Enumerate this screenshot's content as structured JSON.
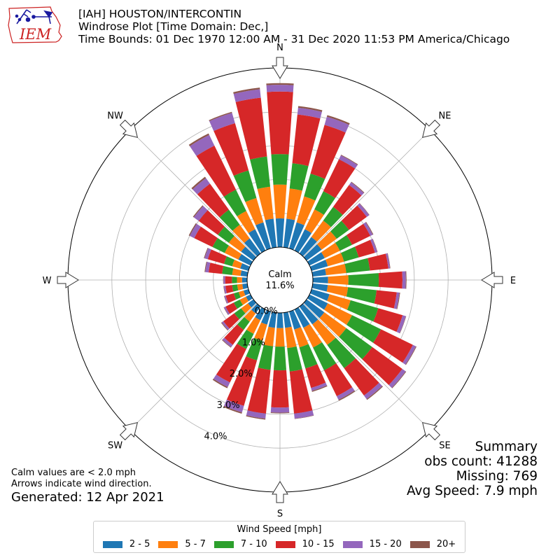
{
  "header": {
    "line1": "[IAH] HOUSTON/INTERCONTIN",
    "line2": "Windrose Plot [Time Domain: Dec,]",
    "line3": "Time Bounds: 01 Dec 1970 12:00 AM - 31 Dec 2020 11:53 PM America/Chicago"
  },
  "logo": {
    "text": "IEM",
    "color": "#cc2222"
  },
  "summary": {
    "title": "Summary",
    "obs_count": "obs count: 41288",
    "missing": "Missing: 769",
    "avg_speed": "Avg Speed: 7.9 mph"
  },
  "notes": {
    "calm": "Calm values are < 2.0 mph",
    "arrows": "Arrows indicate wind direction.",
    "generated": "Generated: 12 Apr 2021"
  },
  "legend": {
    "title": "Wind Speed [mph]",
    "items": [
      {
        "label": "2 - 5",
        "color": "#1f77b4"
      },
      {
        "label": "5 - 7",
        "color": "#ff7f0e"
      },
      {
        "label": "7 - 10",
        "color": "#2ca02c"
      },
      {
        "label": "10 - 15",
        "color": "#d62728"
      },
      {
        "label": "15 - 20",
        "color": "#9467bd"
      },
      {
        "label": "20+",
        "color": "#8c564b"
      }
    ]
  },
  "chart_data": {
    "type": "windrose",
    "calm_label": "Calm",
    "calm_value": "11.6%",
    "radial_ticks": [
      0,
      1,
      2,
      3,
      4
    ],
    "radial_tick_labels": [
      "0.0%",
      "1.0%",
      "2.0%",
      "3.0%",
      "4.0%"
    ],
    "rmax": 5.3,
    "compass_labels": [
      "N",
      "NE",
      "E",
      "SE",
      "S",
      "SW",
      "W",
      "NW"
    ],
    "bin_labels": [
      "2 - 5",
      "5 - 7",
      "7 - 10",
      "10 - 15",
      "15 - 20",
      "20+"
    ],
    "directions_deg": [
      0,
      10,
      20,
      30,
      40,
      50,
      60,
      70,
      80,
      90,
      100,
      110,
      120,
      130,
      140,
      150,
      160,
      170,
      180,
      190,
      200,
      210,
      220,
      230,
      240,
      250,
      260,
      270,
      280,
      290,
      300,
      310,
      320,
      330,
      340,
      350
    ],
    "cumulative_percent": [
      [
        0.85,
        1.85,
        2.75,
        4.6,
        4.8,
        4.85
      ],
      [
        0.85,
        1.75,
        2.5,
        3.95,
        4.15,
        4.2
      ],
      [
        0.8,
        1.6,
        2.3,
        3.8,
        4.05,
        4.1
      ],
      [
        0.7,
        1.35,
        1.95,
        3.0,
        3.13,
        3.15
      ],
      [
        0.6,
        1.2,
        1.7,
        2.5,
        2.6,
        2.62
      ],
      [
        0.55,
        1.1,
        1.55,
        2.2,
        2.29,
        2.3
      ],
      [
        0.5,
        1.0,
        1.4,
        2.0,
        2.08,
        2.1
      ],
      [
        0.5,
        1.0,
        1.45,
        1.95,
        2.02,
        2.03
      ],
      [
        0.4,
        1.0,
        1.7,
        2.25,
        2.3,
        2.31
      ],
      [
        0.45,
        1.05,
        1.95,
        2.65,
        2.75,
        2.77
      ],
      [
        0.45,
        1.05,
        1.9,
        2.5,
        2.58,
        2.6
      ],
      [
        0.55,
        1.2,
        2.05,
        2.8,
        2.9,
        2.91
      ],
      [
        0.6,
        1.4,
        2.35,
        3.4,
        3.5,
        3.52
      ],
      [
        0.65,
        1.45,
        2.4,
        3.5,
        3.62,
        3.64
      ],
      [
        0.65,
        1.4,
        2.25,
        3.25,
        3.38,
        3.41
      ],
      [
        0.6,
        1.25,
        2.0,
        2.85,
        2.97,
        3.0
      ],
      [
        0.55,
        1.1,
        1.75,
        2.35,
        2.44,
        2.47
      ],
      [
        0.45,
        1.05,
        1.75,
        3.0,
        3.15,
        3.16
      ],
      [
        0.45,
        1.0,
        1.7,
        2.8,
        2.95,
        2.97
      ],
      [
        0.45,
        1.0,
        1.7,
        3.0,
        3.15,
        3.18
      ],
      [
        0.4,
        0.9,
        1.5,
        2.9,
        3.1,
        3.14
      ],
      [
        0.35,
        0.8,
        1.3,
        2.4,
        2.55,
        2.59
      ],
      [
        0.25,
        0.55,
        0.85,
        1.4,
        1.48,
        1.5
      ],
      [
        0.2,
        0.45,
        0.7,
        1.1,
        1.16,
        1.18
      ],
      [
        0.15,
        0.35,
        0.55,
        0.82,
        0.87,
        0.88
      ],
      [
        0.15,
        0.3,
        0.45,
        0.7,
        0.74,
        0.75
      ],
      [
        0.15,
        0.3,
        0.45,
        0.65,
        0.7,
        0.71
      ],
      [
        0.15,
        0.3,
        0.45,
        0.65,
        0.7,
        0.71
      ],
      [
        0.2,
        0.45,
        0.75,
        1.15,
        1.25,
        1.27
      ],
      [
        0.25,
        0.5,
        0.75,
        1.25,
        1.35,
        1.37
      ],
      [
        0.4,
        0.85,
        1.25,
        1.85,
        2.0,
        2.03
      ],
      [
        0.45,
        0.9,
        1.3,
        2.0,
        2.18,
        2.21
      ],
      [
        0.55,
        1.05,
        1.6,
        2.55,
        2.75,
        2.8
      ],
      [
        0.7,
        1.3,
        2.0,
        3.45,
        3.8,
        3.85
      ],
      [
        0.8,
        1.55,
        2.4,
        3.85,
        4.17,
        4.2
      ],
      [
        0.85,
        1.8,
        2.7,
        4.45,
        4.7,
        4.75
      ]
    ]
  }
}
